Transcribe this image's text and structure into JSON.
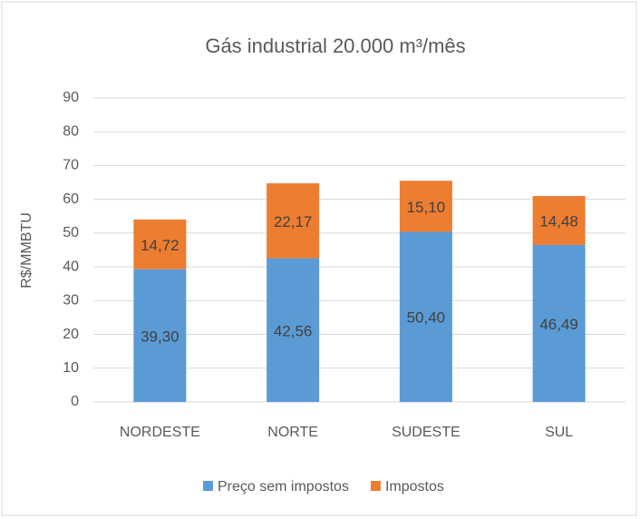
{
  "chart_data": {
    "type": "stacked_bar",
    "title": "Gás industrial 20.000 m³/mês",
    "y_label": "R$/MMBTU",
    "categories": [
      "NORDESTE",
      "NORTE",
      "SUDESTE",
      "SUL"
    ],
    "series": [
      {
        "name": "Preço sem impostos",
        "color": "#5b9bd5",
        "values": [
          39.3,
          42.56,
          50.4,
          46.49
        ],
        "value_labels": [
          "39,30",
          "42,56",
          "50,40",
          "46,49"
        ]
      },
      {
        "name": "Impostos",
        "color": "#ed7d31",
        "values": [
          14.72,
          22.17,
          15.1,
          14.48
        ],
        "value_labels": [
          "14,72",
          "22,17",
          "15,10",
          "14,48"
        ]
      }
    ],
    "ylim": [
      0,
      90
    ],
    "yticks": [
      0,
      10,
      20,
      30,
      40,
      50,
      60,
      70,
      80,
      90
    ],
    "grid": true
  }
}
